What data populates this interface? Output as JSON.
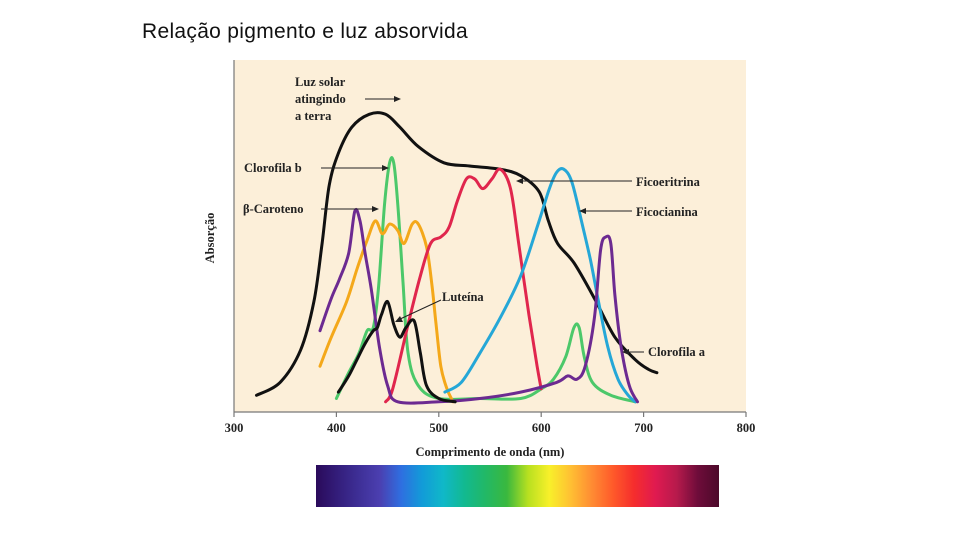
{
  "slide": {
    "title": "Relação pigmento e luz absorvida"
  },
  "chart_data": {
    "type": "line",
    "title": "",
    "xlabel": "Comprimento de onda (nm)",
    "ylabel": "Absorção",
    "xlim": [
      300,
      800
    ],
    "ylim": [
      0,
      1
    ],
    "xticks": [
      300,
      400,
      500,
      600,
      700,
      800
    ],
    "grid": false,
    "background": "#fcefd9",
    "series": [
      {
        "name": "Luz solar atingindo a terra",
        "label_lines": [
          "Luz solar",
          "atingindo",
          "a terra"
        ],
        "color": "#111111",
        "points": [
          [
            322,
            0.03
          ],
          [
            345,
            0.07
          ],
          [
            365,
            0.17
          ],
          [
            378,
            0.32
          ],
          [
            386,
            0.5
          ],
          [
            393,
            0.68
          ],
          [
            402,
            0.78
          ],
          [
            415,
            0.86
          ],
          [
            432,
            0.9
          ],
          [
            448,
            0.9
          ],
          [
            462,
            0.86
          ],
          [
            480,
            0.8
          ],
          [
            505,
            0.75
          ],
          [
            530,
            0.74
          ],
          [
            560,
            0.73
          ],
          [
            580,
            0.71
          ],
          [
            598,
            0.66
          ],
          [
            607,
            0.57
          ],
          [
            616,
            0.5
          ],
          [
            632,
            0.44
          ],
          [
            652,
            0.33
          ],
          [
            672,
            0.21
          ],
          [
            692,
            0.14
          ],
          [
            705,
            0.11
          ],
          [
            713,
            0.1
          ]
        ]
      },
      {
        "name": "Clorofila b",
        "label_lines": [
          "Clorofila b"
        ],
        "color": "#4cc86a",
        "points": [
          [
            400,
            0.02
          ],
          [
            412,
            0.1
          ],
          [
            422,
            0.16
          ],
          [
            430,
            0.23
          ],
          [
            436,
            0.24
          ],
          [
            441,
            0.36
          ],
          [
            447,
            0.62
          ],
          [
            452,
            0.75
          ],
          [
            456,
            0.75
          ],
          [
            460,
            0.62
          ],
          [
            465,
            0.38
          ],
          [
            470,
            0.16
          ],
          [
            480,
            0.06
          ],
          [
            500,
            0.02
          ],
          [
            540,
            0.02
          ],
          [
            580,
            0.02
          ],
          [
            600,
            0.05
          ],
          [
            612,
            0.08
          ],
          [
            624,
            0.15
          ],
          [
            632,
            0.24
          ],
          [
            637,
            0.24
          ],
          [
            642,
            0.15
          ],
          [
            650,
            0.07
          ],
          [
            668,
            0.03
          ],
          [
            692,
            0.01
          ]
        ]
      },
      {
        "name": "β-Caroteno",
        "label_lines": [
          "β-Caroteno"
        ],
        "color": "#f4a81a",
        "points": [
          [
            384,
            0.12
          ],
          [
            395,
            0.21
          ],
          [
            410,
            0.32
          ],
          [
            420,
            0.42
          ],
          [
            430,
            0.51
          ],
          [
            438,
            0.57
          ],
          [
            445,
            0.53
          ],
          [
            452,
            0.56
          ],
          [
            460,
            0.54
          ],
          [
            466,
            0.5
          ],
          [
            474,
            0.56
          ],
          [
            480,
            0.56
          ],
          [
            488,
            0.49
          ],
          [
            493,
            0.38
          ],
          [
            497,
            0.26
          ],
          [
            502,
            0.12
          ],
          [
            508,
            0.05
          ],
          [
            514,
            0.01
          ]
        ]
      },
      {
        "name": "Ficoeritrina",
        "label_lines": [
          "Ficoeritrina"
        ],
        "color": "#e0264d",
        "points": [
          [
            448,
            0.01
          ],
          [
            455,
            0.05
          ],
          [
            470,
            0.25
          ],
          [
            482,
            0.4
          ],
          [
            492,
            0.5
          ],
          [
            502,
            0.52
          ],
          [
            510,
            0.55
          ],
          [
            518,
            0.63
          ],
          [
            527,
            0.7
          ],
          [
            535,
            0.7
          ],
          [
            543,
            0.67
          ],
          [
            552,
            0.7
          ],
          [
            560,
            0.73
          ],
          [
            570,
            0.67
          ],
          [
            578,
            0.5
          ],
          [
            588,
            0.28
          ],
          [
            596,
            0.12
          ],
          [
            600,
            0.05
          ]
        ]
      },
      {
        "name": "Ficocianina",
        "label_lines": [
          "Ficocianina"
        ],
        "color": "#25a7d7",
        "points": [
          [
            506,
            0.04
          ],
          [
            522,
            0.07
          ],
          [
            540,
            0.16
          ],
          [
            560,
            0.27
          ],
          [
            580,
            0.4
          ],
          [
            597,
            0.56
          ],
          [
            608,
            0.67
          ],
          [
            615,
            0.72
          ],
          [
            622,
            0.73
          ],
          [
            630,
            0.69
          ],
          [
            640,
            0.56
          ],
          [
            648,
            0.45
          ],
          [
            656,
            0.32
          ],
          [
            665,
            0.18
          ],
          [
            675,
            0.08
          ],
          [
            685,
            0.03
          ],
          [
            692,
            0.01
          ]
        ]
      },
      {
        "name": "Clorofila a",
        "label_lines": [
          "Clorofila a"
        ],
        "color": "#6c2a91",
        "points": [
          [
            384,
            0.23
          ],
          [
            395,
            0.33
          ],
          [
            403,
            0.39
          ],
          [
            412,
            0.47
          ],
          [
            418,
            0.6
          ],
          [
            423,
            0.57
          ],
          [
            428,
            0.47
          ],
          [
            434,
            0.36
          ],
          [
            442,
            0.18
          ],
          [
            450,
            0.06
          ],
          [
            460,
            0.01
          ],
          [
            500,
            0.01
          ],
          [
            540,
            0.02
          ],
          [
            580,
            0.04
          ],
          [
            615,
            0.07
          ],
          [
            626,
            0.09
          ],
          [
            635,
            0.08
          ],
          [
            643,
            0.12
          ],
          [
            652,
            0.27
          ],
          [
            658,
            0.48
          ],
          [
            663,
            0.52
          ],
          [
            668,
            0.5
          ],
          [
            672,
            0.34
          ],
          [
            678,
            0.18
          ],
          [
            686,
            0.06
          ],
          [
            694,
            0.01
          ]
        ]
      },
      {
        "name": "Luteína",
        "label_lines": [
          "Luteína"
        ],
        "color": "#111111",
        "points": [
          [
            402,
            0.04
          ],
          [
            412,
            0.09
          ],
          [
            420,
            0.14
          ],
          [
            428,
            0.19
          ],
          [
            436,
            0.23
          ],
          [
            440,
            0.24
          ],
          [
            444,
            0.28
          ],
          [
            450,
            0.32
          ],
          [
            456,
            0.25
          ],
          [
            462,
            0.21
          ],
          [
            468,
            0.24
          ],
          [
            476,
            0.26
          ],
          [
            482,
            0.16
          ],
          [
            488,
            0.06
          ],
          [
            500,
            0.02
          ],
          [
            516,
            0.01
          ]
        ]
      }
    ],
    "spectrum_colors": [
      "#2a0a5a",
      "#331d7a",
      "#3e2f96",
      "#4b3fb0",
      "#2f6ee0",
      "#129bd8",
      "#10b8c8",
      "#12b990",
      "#22b866",
      "#3ab83e",
      "#b8e020",
      "#f8f02a",
      "#ffc033",
      "#ff8c33",
      "#ff5a2a",
      "#f52d2d",
      "#e01a50",
      "#b71a4c",
      "#6e0c3a",
      "#4c0a2a"
    ]
  }
}
